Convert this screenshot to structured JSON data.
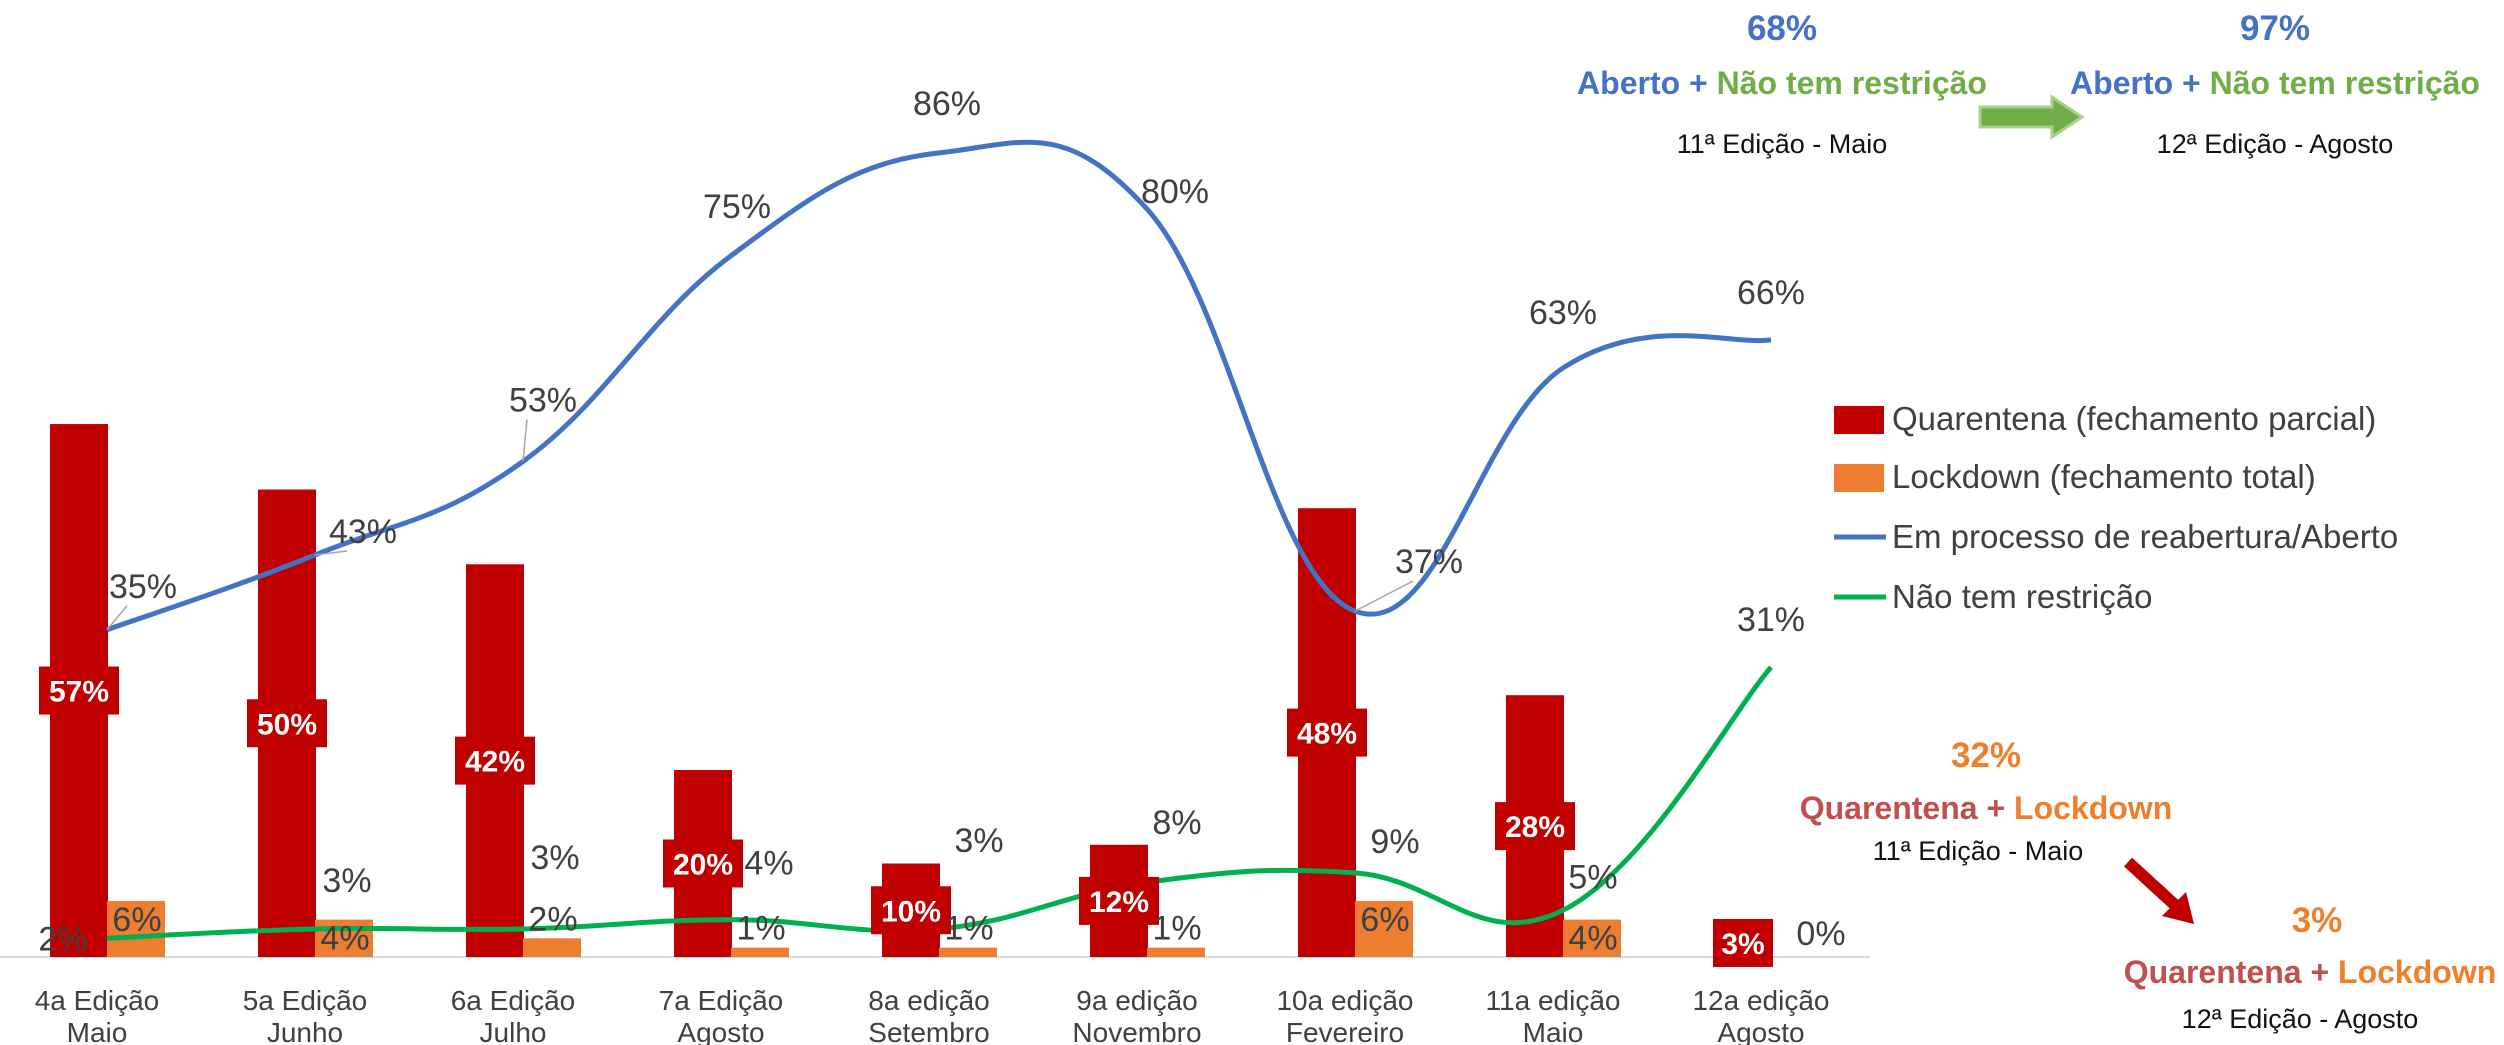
{
  "chart_data": {
    "type": "bar",
    "title": "",
    "xlabel": "",
    "ylabel": "",
    "grid": false,
    "legend_position": "right",
    "ylim": [
      0,
      100
    ],
    "categories": [
      [
        "4a Edição",
        "Maio"
      ],
      [
        "5a Edição",
        "Junho"
      ],
      [
        "6a Edição",
        "Julho"
      ],
      [
        "7a Edição",
        "Agosto"
      ],
      [
        "8a edição",
        "Setembro"
      ],
      [
        "9a edição",
        "Novembro"
      ],
      [
        "10a edição",
        "Fevereiro"
      ],
      [
        "11a edição",
        "Maio"
      ],
      [
        "12a edição",
        "Agosto"
      ]
    ],
    "series": [
      {
        "name": "Quarentena (fechamento parcial)",
        "kind": "bar",
        "color": "#C00000",
        "values": [
          57,
          50,
          42,
          20,
          10,
          12,
          48,
          28,
          3
        ],
        "labels": [
          "57%",
          "50%",
          "42%",
          "20%",
          "10%",
          "12%",
          "48%",
          "28%",
          "3%"
        ]
      },
      {
        "name": "Lockdown (fechamento total)",
        "kind": "bar",
        "color": "#ED7D31",
        "values": [
          6,
          4,
          2,
          1,
          1,
          1,
          6,
          4,
          0
        ],
        "labels": [
          "6%",
          "4%",
          "2%",
          "1%",
          "1%",
          "1%",
          "6%",
          "4%",
          "0%"
        ]
      },
      {
        "name": "Em processo de reabertura/Aberto",
        "kind": "line",
        "color": "#4472C4",
        "values": [
          35,
          43,
          53,
          75,
          86,
          80,
          37,
          63,
          66
        ],
        "labels": [
          "35%",
          "43%",
          "53%",
          "75%",
          "86%",
          "80%",
          "37%",
          "63%",
          "66%"
        ]
      },
      {
        "name": "Não tem restrição",
        "kind": "line",
        "color": "#00B050",
        "values": [
          2,
          3,
          3,
          4,
          3,
          8,
          9,
          5,
          31
        ],
        "labels": [
          "2%",
          "3%",
          "3%",
          "4%",
          "3%",
          "8%",
          "9%",
          "5%",
          "31%"
        ]
      }
    ]
  },
  "callouts": {
    "top_left": {
      "value": "68%",
      "part1": "Aberto",
      "plus": " + ",
      "part2": "Não tem restrição",
      "edition": "11ª Edição - Maio"
    },
    "top_right": {
      "value": "97%",
      "part1": "Aberto",
      "plus": " + ",
      "part2": "Não tem restrição",
      "edition": "12ª Edição - Agosto"
    },
    "mid": {
      "value": "32%",
      "part1": "Quarentena",
      "plus": " + ",
      "part2": "Lockdown",
      "edition": "11ª Edição - Maio"
    },
    "bottom": {
      "value": "3%",
      "part1": "Quarentena",
      "plus": " + ",
      "part2": "Lockdown",
      "edition": "12ª Edição - Agosto"
    }
  },
  "colors": {
    "quarentena": "#C00000",
    "lockdown": "#ED7D31",
    "aberto": "#4472C4",
    "sem_restricao": "#00B050",
    "callout_quarentena": "#C0504D",
    "callout_lockdown": "#F07F2C",
    "callout_green": "#70AD47",
    "arrow_green": "#70AD47",
    "arrow_red": "#C00000"
  }
}
